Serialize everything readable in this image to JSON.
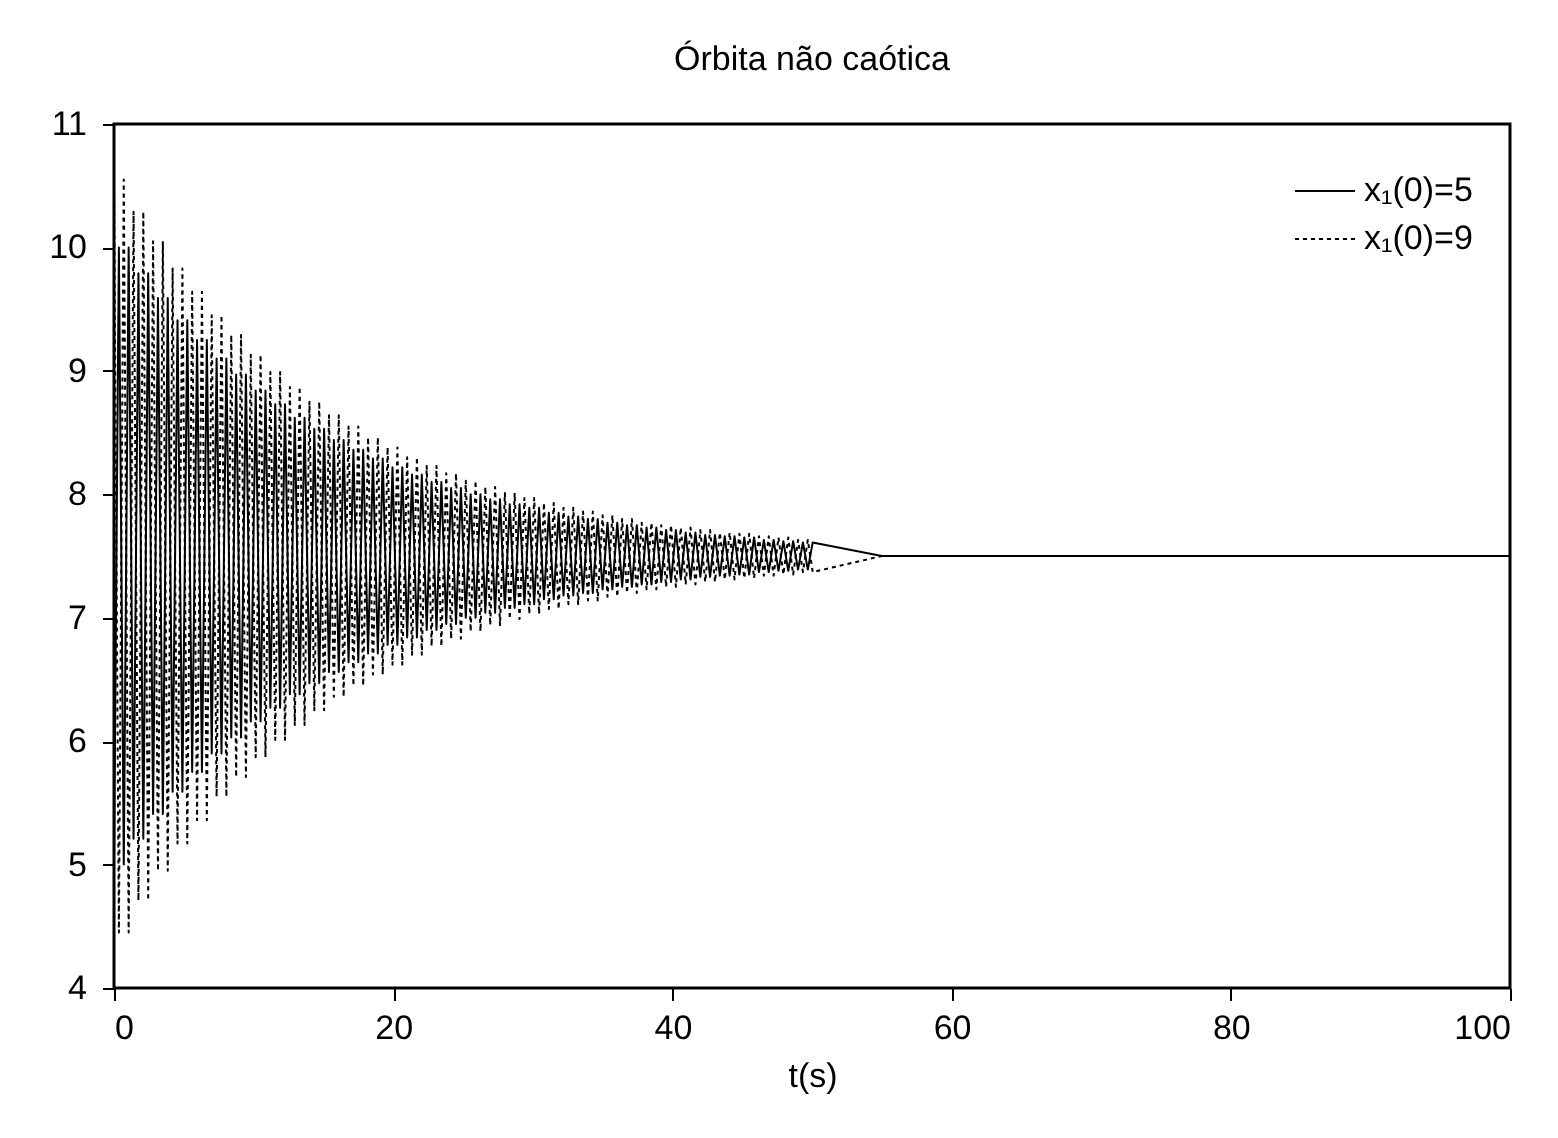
{
  "chart_data": {
    "type": "line",
    "title": "Órbita não caótica",
    "xlabel": "t(s)",
    "xlim": [
      0,
      100
    ],
    "xticks": [
      0,
      20,
      40,
      60,
      80,
      100
    ],
    "ylim": [
      4,
      11
    ],
    "yticks": [
      4,
      5,
      6,
      7,
      8,
      9,
      10,
      11
    ],
    "legend": "top right",
    "x": [
      0,
      0.35,
      0.7,
      1.05,
      1.4,
      1.75,
      2.1,
      2.45,
      2.8,
      3.15,
      3.5,
      3.85,
      4.2,
      4.55,
      4.9,
      5.25,
      5.6,
      5.95,
      6.3,
      6.65,
      7,
      7.35,
      7.7,
      8.05,
      8.4,
      8.75,
      9.1,
      9.45,
      9.8,
      10.15,
      10.5,
      10.85,
      11.2,
      11.55,
      11.9,
      12.25,
      12.6,
      12.95,
      13.3,
      13.65,
      14,
      14.35,
      14.7,
      15.05,
      15.4,
      15.75,
      16.1,
      16.45,
      16.8,
      17.15,
      17.5,
      17.85,
      18.2,
      18.55,
      18.9,
      19.25,
      19.6,
      19.95,
      20.3,
      20.65,
      21,
      21.35,
      21.7,
      22.05,
      22.4,
      22.75,
      23.1,
      23.45,
      23.8,
      24.15,
      24.5,
      24.85,
      25.2,
      25.55,
      25.9,
      26.25,
      26.6,
      26.95,
      27.3,
      27.65,
      28,
      28.35,
      28.7,
      29.05,
      29.4,
      29.75,
      30.1,
      30.45,
      30.8,
      31.15,
      31.5,
      31.85,
      32.2,
      32.55,
      32.9,
      33.25,
      33.6,
      33.95,
      34.3,
      34.65,
      35,
      35.35,
      35.7,
      36.05,
      36.4,
      36.75,
      37.1,
      37.45,
      37.8,
      38.15,
      38.5,
      38.85,
      39.2,
      39.55,
      39.9,
      40.25,
      40.6,
      40.95,
      41.3,
      41.65,
      42,
      42.35,
      42.7,
      43.05,
      43.4,
      43.75,
      44.1,
      44.45,
      44.8,
      45.15,
      45.5,
      45.85,
      46.2,
      46.55,
      46.9,
      47.25,
      47.6,
      47.95,
      48.3,
      48.65,
      49,
      49.35,
      49.7,
      50.05,
      55,
      100
    ],
    "series": [
      {
        "name": "x₁(0)=5",
        "color": "#000000",
        "line_style": "solid",
        "values": [
          5,
          10,
          5,
          10,
          5.21,
          9.79,
          5.21,
          9.79,
          5.41,
          9.59,
          5.41,
          9.59,
          5.59,
          9.41,
          5.59,
          9.41,
          5.75,
          9.25,
          5.75,
          9.25,
          5.9,
          9.1,
          5.9,
          9.1,
          6.03,
          8.97,
          6.03,
          8.97,
          6.16,
          8.84,
          6.16,
          8.84,
          6.27,
          8.73,
          6.27,
          8.73,
          6.38,
          8.62,
          6.38,
          8.62,
          6.47,
          8.53,
          6.47,
          8.53,
          6.56,
          8.44,
          6.56,
          8.44,
          6.64,
          8.36,
          6.64,
          8.36,
          6.71,
          8.29,
          6.71,
          8.29,
          6.78,
          8.22,
          6.78,
          8.22,
          6.84,
          8.16,
          6.84,
          8.16,
          6.9,
          8.1,
          6.9,
          8.1,
          6.95,
          8.05,
          6.95,
          8.05,
          7,
          8,
          7,
          8,
          7.04,
          7.96,
          7.04,
          7.96,
          7.08,
          7.92,
          7.08,
          7.92,
          7.11,
          7.89,
          7.11,
          7.89,
          7.15,
          7.85,
          7.15,
          7.85,
          7.18,
          7.82,
          7.18,
          7.82,
          7.2,
          7.8,
          7.2,
          7.8,
          7.23,
          7.77,
          7.23,
          7.77,
          7.25,
          7.75,
          7.25,
          7.75,
          7.27,
          7.73,
          7.27,
          7.73,
          7.29,
          7.71,
          7.29,
          7.71,
          7.31,
          7.69,
          7.31,
          7.69,
          7.33,
          7.67,
          7.33,
          7.67,
          7.34,
          7.66,
          7.34,
          7.66,
          7.35,
          7.65,
          7.35,
          7.65,
          7.37,
          7.63,
          7.37,
          7.63,
          7.38,
          7.62,
          7.38,
          7.62,
          7.39,
          7.61,
          7.39,
          7.61,
          7.5,
          7.5
        ]
      },
      {
        "name": "x₁(0)=9",
        "color": "#000000",
        "line_style": "dotted",
        "values": [
          10.55,
          4.45,
          10.55,
          4.45,
          10.29,
          4.71,
          10.29,
          4.71,
          10.05,
          4.95,
          10.05,
          4.95,
          9.83,
          5.17,
          9.83,
          5.17,
          9.64,
          5.36,
          9.64,
          5.36,
          9.45,
          5.55,
          9.45,
          5.55,
          9.29,
          5.71,
          9.29,
          5.71,
          9.13,
          5.87,
          9.13,
          5.87,
          8.99,
          6.01,
          8.99,
          6.01,
          8.87,
          6.13,
          8.87,
          6.13,
          8.75,
          6.25,
          8.75,
          6.25,
          8.64,
          6.36,
          8.64,
          6.36,
          8.55,
          6.45,
          8.55,
          6.45,
          8.46,
          6.54,
          8.46,
          6.54,
          8.38,
          6.62,
          8.38,
          6.62,
          8.3,
          6.7,
          8.3,
          6.7,
          8.23,
          6.77,
          8.23,
          6.77,
          8.17,
          6.83,
          8.17,
          6.83,
          8.11,
          6.89,
          8.11,
          6.89,
          8.06,
          6.94,
          8.06,
          6.94,
          8.01,
          6.99,
          8.01,
          6.99,
          7.97,
          7.03,
          7.97,
          7.03,
          7.93,
          7.07,
          7.93,
          7.07,
          7.89,
          7.11,
          7.89,
          7.11,
          7.86,
          7.14,
          7.86,
          7.14,
          7.83,
          7.17,
          7.83,
          7.17,
          7.8,
          7.2,
          7.8,
          7.2,
          7.77,
          7.23,
          7.77,
          7.23,
          7.75,
          7.25,
          7.75,
          7.25,
          7.73,
          7.27,
          7.73,
          7.27,
          7.71,
          7.29,
          7.71,
          7.29,
          7.69,
          7.31,
          7.69,
          7.31,
          7.68,
          7.32,
          7.68,
          7.32,
          7.66,
          7.34,
          7.66,
          7.34,
          7.65,
          7.35,
          7.65,
          7.35,
          7.63,
          7.37,
          7.63,
          7.37,
          7.5,
          7.5
        ]
      }
    ]
  }
}
